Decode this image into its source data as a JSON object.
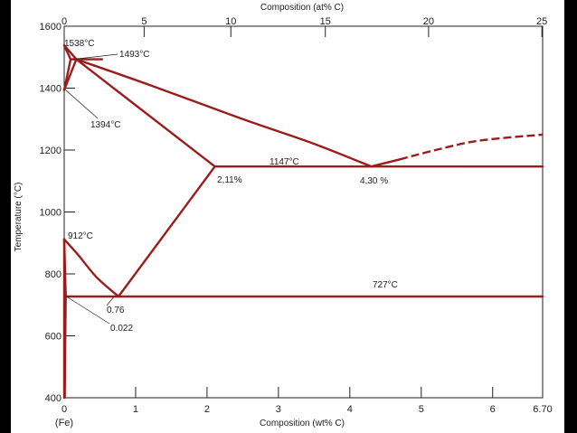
{
  "chart_data": {
    "type": "phase-diagram",
    "title": "",
    "xlabel": "Composition (wt% C)",
    "xlabel_top": "Composition (at% C)",
    "ylabel": "Temperature (°C)",
    "xlim": [
      0,
      6.7
    ],
    "ylim": [
      400,
      1600
    ],
    "x_ticks": [
      "0",
      "1",
      "2",
      "3",
      "4",
      "5",
      "6",
      "6.70"
    ],
    "x_tick_sublabel": "(Fe)",
    "x_top_ticks": [
      "0",
      "5",
      "10",
      "15",
      "20",
      "25"
    ],
    "y_ticks": [
      "400",
      "600",
      "800",
      "1000",
      "1200",
      "1400",
      "1600"
    ],
    "line_color": "#9b1c1c",
    "phase_lines": [
      {
        "name": "liquidus-left",
        "points": [
          [
            0,
            1538
          ],
          [
            0.17,
            1493
          ]
        ]
      },
      {
        "name": "solidus-left",
        "points": [
          [
            0,
            1538
          ],
          [
            0.09,
            1493
          ]
        ]
      },
      {
        "name": "peritectic-line",
        "points": [
          [
            0.09,
            1493
          ],
          [
            0.53,
            1493
          ]
        ]
      },
      {
        "name": "delta-gamma-boundary",
        "points": [
          [
            0,
            1394
          ],
          [
            0.09,
            1493
          ]
        ]
      },
      {
        "name": "delta-gamma-boundary-2",
        "points": [
          [
            0,
            1394
          ],
          [
            0.17,
            1493
          ]
        ]
      },
      {
        "name": "liquidus-main",
        "points": [
          [
            0.17,
            1493
          ],
          [
            1.2,
            1410
          ],
          [
            2.5,
            1300
          ],
          [
            3.5,
            1220
          ],
          [
            4.3,
            1147
          ]
        ]
      },
      {
        "name": "solidus-austenite",
        "points": [
          [
            0.17,
            1493
          ],
          [
            2.11,
            1147
          ]
        ]
      },
      {
        "name": "eutectic-line",
        "points": [
          [
            2.11,
            1147
          ],
          [
            6.7,
            1147
          ]
        ]
      },
      {
        "name": "liquidus-cementite",
        "points": [
          [
            4.3,
            1147
          ],
          [
            4.7,
            1170
          ]
        ]
      },
      {
        "name": "acm-line",
        "points": [
          [
            2.11,
            1147
          ],
          [
            0.76,
            727
          ]
        ]
      },
      {
        "name": "a3-line",
        "points": [
          [
            0,
            912
          ],
          [
            0.2,
            860
          ],
          [
            0.45,
            790
          ],
          [
            0.76,
            727
          ]
        ]
      },
      {
        "name": "eutectoid-line",
        "points": [
          [
            0.022,
            727
          ],
          [
            6.7,
            727
          ]
        ]
      },
      {
        "name": "alpha-solvus",
        "points": [
          [
            0,
            912
          ],
          [
            0.022,
            727
          ]
        ]
      },
      {
        "name": "alpha-solvus-low",
        "points": [
          [
            0.022,
            727
          ],
          [
            0.015,
            600
          ],
          [
            0.008,
            400
          ]
        ]
      },
      {
        "name": "alpha-left",
        "points": [
          [
            0,
            400
          ],
          [
            0,
            912
          ]
        ]
      }
    ],
    "dashed_lines": [
      {
        "name": "liquidus-cementite-dashed",
        "points": [
          [
            4.7,
            1170
          ],
          [
            5.2,
            1200
          ],
          [
            5.8,
            1230
          ],
          [
            6.7,
            1250
          ]
        ]
      }
    ],
    "annotations": {
      "t1538": "1538°C",
      "t1493": "1493°C",
      "t1394": "1394°C",
      "t1147": "1147°C",
      "t912": "912°C",
      "t727": "727°C",
      "c211": "2,11%",
      "c430": "4,30 %",
      "c076": "0.76",
      "c0022": "0.022"
    }
  }
}
